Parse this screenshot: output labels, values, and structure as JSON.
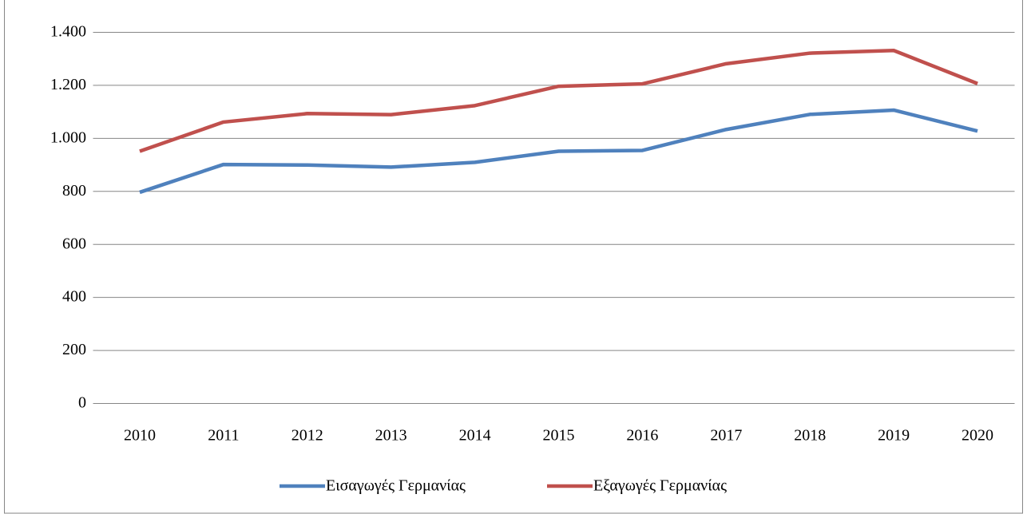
{
  "chart_data": {
    "type": "line",
    "categories": [
      "2010",
      "2011",
      "2012",
      "2013",
      "2014",
      "2015",
      "2016",
      "2017",
      "2018",
      "2019",
      "2020"
    ],
    "series": [
      {
        "name": "Εισαγωγές Γερμανίας",
        "color": "#4f81bd",
        "values": [
          795,
          900,
          898,
          890,
          908,
          950,
          953,
          1032,
          1089,
          1105,
          1026
        ]
      },
      {
        "name": "Εξαγωγές Γερμανίας",
        "color": "#c0504d",
        "values": [
          950,
          1060,
          1092,
          1088,
          1122,
          1195,
          1204,
          1280,
          1320,
          1330,
          1205
        ]
      }
    ],
    "ylim": [
      0,
      1400
    ],
    "yticks": [
      0,
      200,
      400,
      600,
      800,
      {
        "value": 1000,
        "label": "1.000"
      },
      {
        "value": 1200,
        "label": "1.200"
      },
      {
        "value": 1400,
        "label": "1.400"
      }
    ],
    "grid": true,
    "legend": "bottom"
  }
}
